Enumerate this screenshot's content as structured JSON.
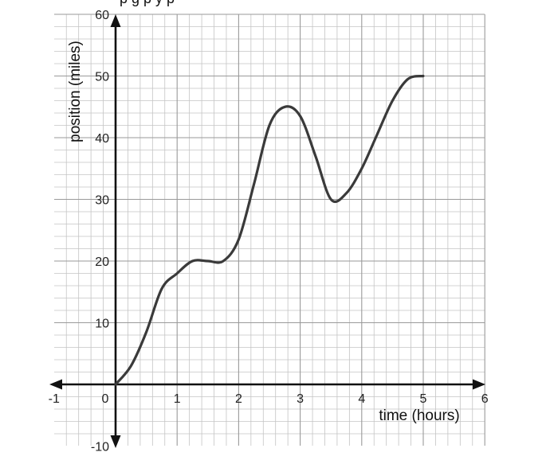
{
  "top_text": "        p                             g p          y                  p",
  "chart_data": {
    "type": "line",
    "xlabel": "time (hours)",
    "ylabel": "position (miles)",
    "xlim": [
      -1,
      6
    ],
    "ylim": [
      -10,
      60
    ],
    "x_ticks": [
      -1,
      0,
      1,
      2,
      3,
      4,
      5,
      6
    ],
    "x_tick_labels": [
      "-1",
      "0",
      "1",
      "2",
      "3",
      "4",
      "5",
      "6"
    ],
    "y_ticks": [
      -10,
      10,
      20,
      30,
      40,
      50,
      60
    ],
    "y_tick_labels": [
      "-10",
      "10",
      "20",
      "30",
      "40",
      "50",
      "60"
    ],
    "grid": true,
    "minor_grid_per_unit": 5,
    "line_color": "#3a3a3a",
    "series": [
      {
        "x": [
          0,
          0.25,
          0.5,
          0.75,
          1,
          1.25,
          1.5,
          1.75,
          2,
          2.25,
          2.5,
          2.75,
          3,
          3.25,
          3.5,
          3.75,
          4,
          4.25,
          4.5,
          4.75,
          5
        ],
        "y": [
          0,
          3,
          8.5,
          15.5,
          18,
          20,
          20,
          20,
          23.5,
          32.5,
          42,
          45,
          43.5,
          37,
          30,
          31,
          35,
          40.5,
          46,
          49.5,
          50
        ]
      }
    ]
  }
}
